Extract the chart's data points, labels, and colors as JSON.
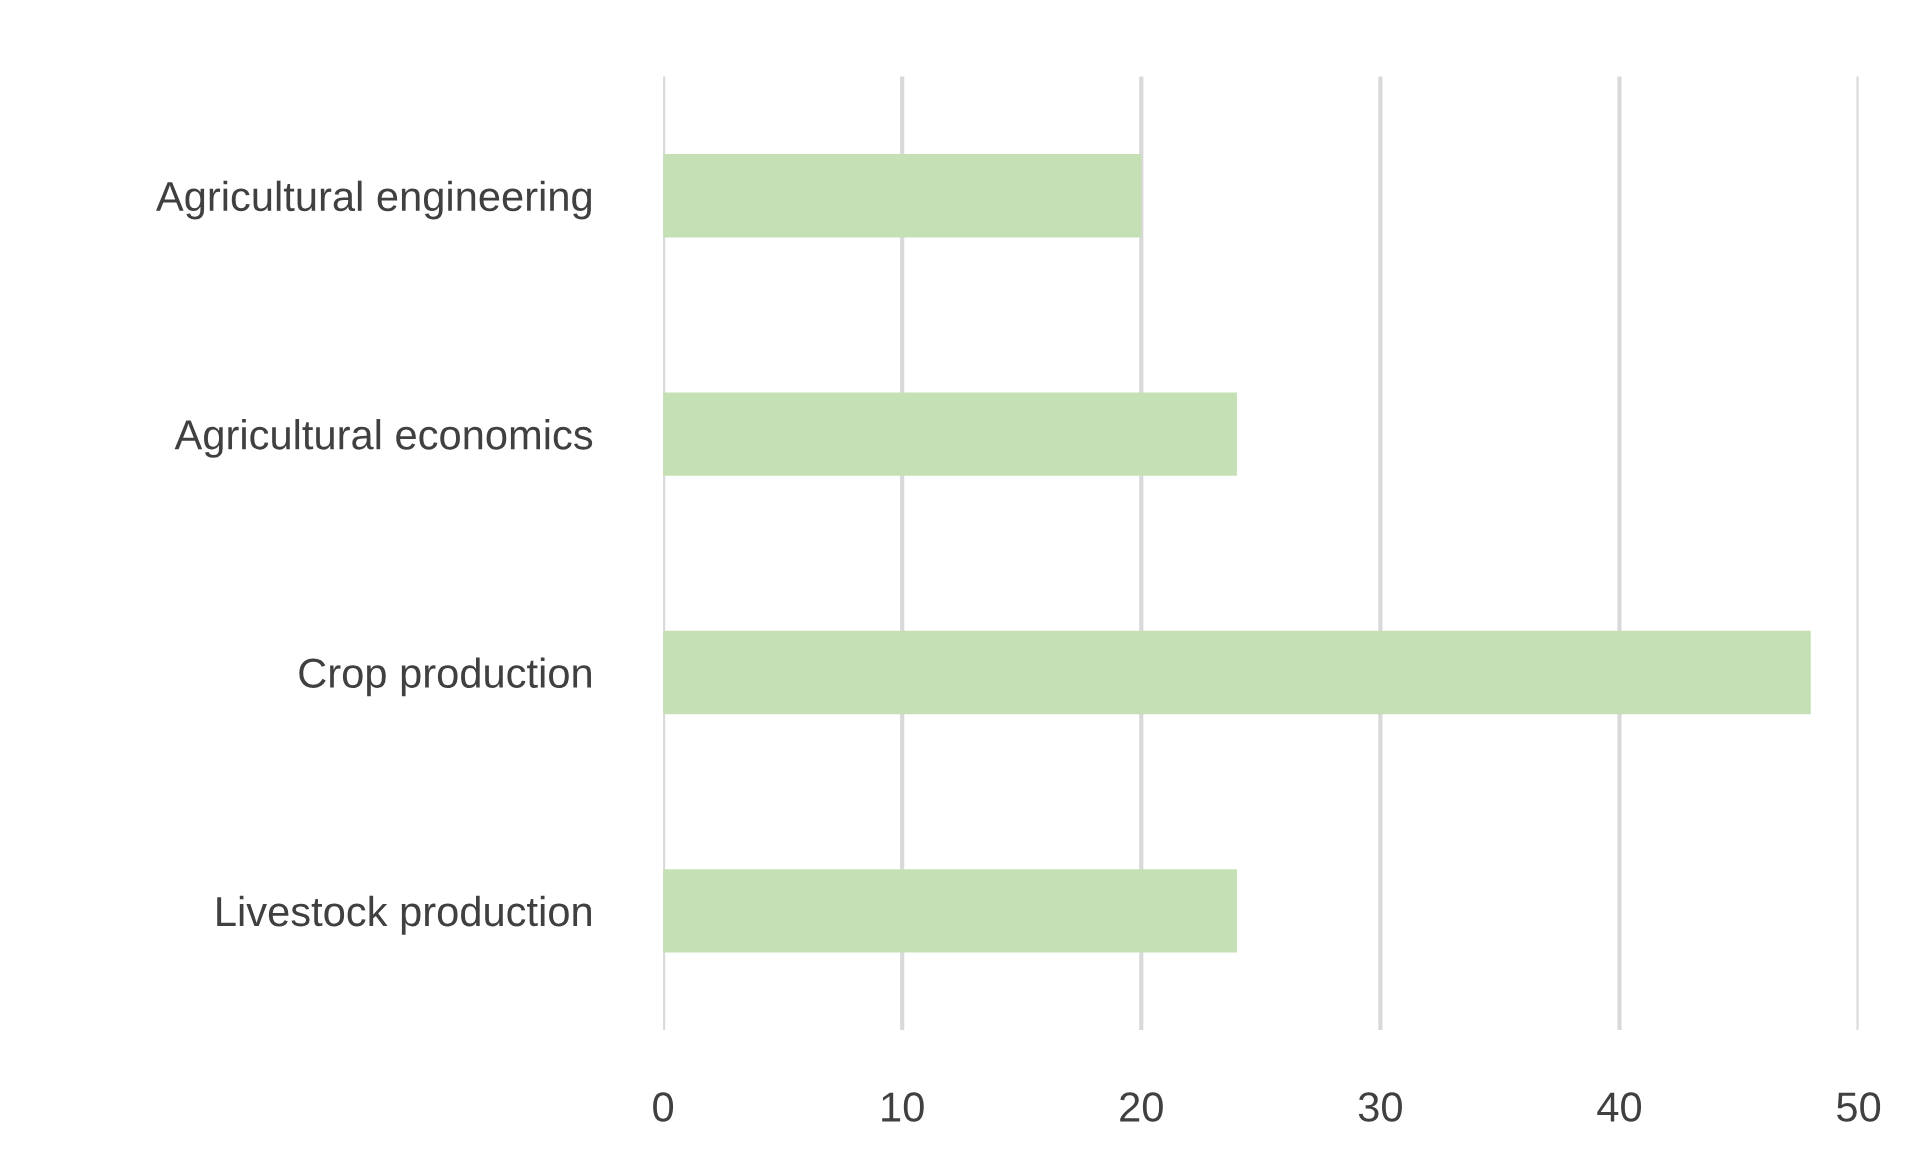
{
  "chart_data": {
    "type": "bar",
    "orientation": "horizontal",
    "categories": [
      "Agricultural engineering",
      "Agricultural economics",
      "Crop production",
      "Livestock production"
    ],
    "values": [
      20,
      24,
      48,
      24
    ],
    "color": "#c5e0b4",
    "xlim": [
      0,
      50
    ],
    "xticks": [
      0,
      10,
      20,
      30,
      40,
      50
    ],
    "grid": "x"
  }
}
